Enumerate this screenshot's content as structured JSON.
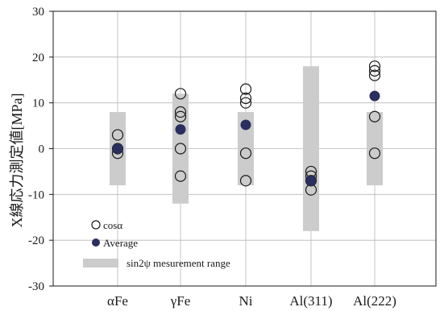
{
  "chart_data": {
    "type": "scatter",
    "ylabel": "X線応力測定値[MPa]",
    "ylim": [
      -30,
      30
    ],
    "yticks": [
      30,
      20,
      10,
      0,
      -10,
      -20,
      -30
    ],
    "categories": [
      "αFe",
      "γFe",
      "Ni",
      "Al(311)",
      "Al(222)"
    ],
    "grid": true,
    "legend_position": "bottom-left",
    "legend": {
      "cos_label": "cosα",
      "average_label": "Average",
      "range_label": "sin2ψ mesurement range"
    },
    "colors": {
      "average": "#2b2f5e",
      "range": "#cccccc",
      "grid": "#b8b8b8",
      "axis": "#1a1a1a"
    },
    "series": [
      {
        "name": "cosα",
        "marker": "open-circle",
        "points": [
          {
            "category": "αFe",
            "values": [
              3,
              0,
              -1
            ]
          },
          {
            "category": "γFe",
            "values": [
              12,
              8,
              7,
              0,
              -6
            ]
          },
          {
            "category": "Ni",
            "values": [
              13,
              11,
              10,
              -1,
              -7
            ]
          },
          {
            "category": "Al(311)",
            "values": [
              -5,
              -6,
              -7,
              -9
            ]
          },
          {
            "category": "Al(222)",
            "values": [
              18,
              17,
              16,
              7,
              -1
            ]
          }
        ]
      },
      {
        "name": "Average",
        "marker": "filled-circle",
        "values": [
          0,
          4.2,
          5.2,
          -7,
          11.5
        ]
      },
      {
        "name": "sin2ψ mesurement range",
        "marker": "bar-range",
        "ranges": [
          [
            -8,
            8
          ],
          [
            -12,
            12
          ],
          [
            -8,
            8
          ],
          [
            -18,
            18
          ],
          [
            -8,
            8
          ]
        ]
      }
    ]
  }
}
